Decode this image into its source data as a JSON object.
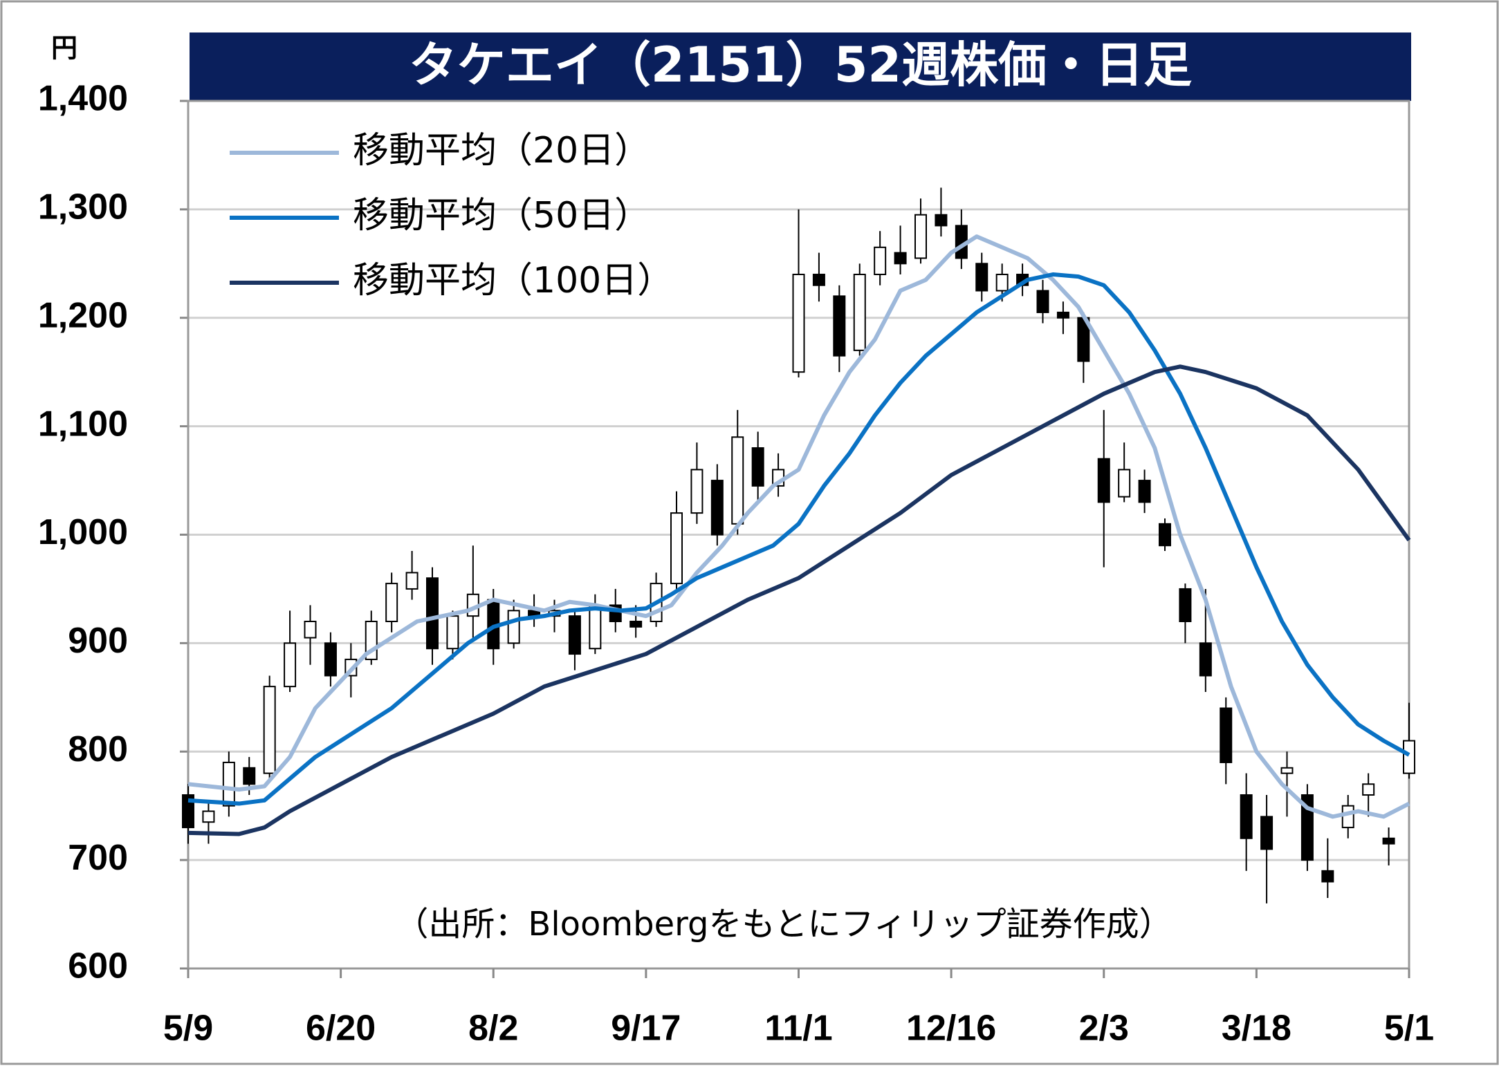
{
  "chart_data": {
    "type": "candlestick",
    "title": "タケエイ（2151）52週株価・日足",
    "y_unit": "円",
    "source": "（出所：Bloombergをもとにフィリップ証券作成）",
    "xlim": [
      0,
      240
    ],
    "xticks": [
      {
        "value": 0,
        "label": "5/9"
      },
      {
        "value": 30,
        "label": "6/20"
      },
      {
        "value": 60,
        "label": "8/2"
      },
      {
        "value": 90,
        "label": "9/17"
      },
      {
        "value": 120,
        "label": "11/1"
      },
      {
        "value": 150,
        "label": "12/16"
      },
      {
        "value": 180,
        "label": "2/3"
      },
      {
        "value": 210,
        "label": "3/18"
      },
      {
        "value": 240,
        "label": "5/1"
      }
    ],
    "ylim": [
      600,
      1400
    ],
    "yticks": [
      600,
      700,
      800,
      900,
      {
        "value": 1000,
        "label": "1,000"
      },
      {
        "value": 1100,
        "label": "1,100"
      },
      {
        "value": 1200,
        "label": "1,200"
      },
      {
        "value": 1300,
        "label": "1,300"
      },
      {
        "value": 1400,
        "label": "1,400"
      }
    ],
    "grid": true,
    "legend": "upper left",
    "up_color": "#ffffff",
    "down_color": "#000000",
    "candles": {
      "x": [
        0,
        4,
        8,
        12,
        16,
        20,
        24,
        28,
        32,
        36,
        40,
        44,
        48,
        52,
        56,
        60,
        64,
        68,
        72,
        76,
        80,
        84,
        88,
        92,
        96,
        100,
        104,
        108,
        112,
        116,
        120,
        124,
        128,
        132,
        136,
        140,
        144,
        148,
        152,
        156,
        160,
        164,
        168,
        172,
        176,
        180,
        184,
        188,
        192,
        196,
        200,
        204,
        208,
        212,
        216,
        220,
        224,
        228,
        232,
        236,
        240
      ],
      "open": [
        760,
        735,
        750,
        785,
        780,
        860,
        905,
        900,
        870,
        885,
        920,
        950,
        960,
        895,
        925,
        940,
        900,
        930,
        925,
        925,
        895,
        935,
        920,
        920,
        955,
        1020,
        1050,
        1010,
        1080,
        1045,
        1150,
        1240,
        1220,
        1170,
        1240,
        1260,
        1255,
        1295,
        1285,
        1250,
        1225,
        1240,
        1225,
        1205,
        1200,
        1070,
        1035,
        1050,
        1010,
        950,
        900,
        840,
        760,
        740,
        780,
        760,
        690,
        730,
        760,
        720,
        780
      ],
      "high": [
        770,
        755,
        800,
        795,
        870,
        930,
        935,
        910,
        900,
        930,
        965,
        985,
        970,
        930,
        990,
        950,
        940,
        945,
        940,
        930,
        945,
        950,
        935,
        965,
        1040,
        1085,
        1065,
        1115,
        1095,
        1075,
        1300,
        1260,
        1230,
        1250,
        1280,
        1285,
        1310,
        1320,
        1300,
        1260,
        1250,
        1250,
        1235,
        1215,
        1205,
        1115,
        1085,
        1060,
        1015,
        955,
        950,
        850,
        780,
        760,
        800,
        770,
        720,
        760,
        780,
        730,
        845
      ],
      "low": [
        715,
        715,
        740,
        760,
        775,
        855,
        880,
        860,
        850,
        880,
        910,
        940,
        880,
        885,
        905,
        880,
        895,
        915,
        910,
        875,
        890,
        910,
        905,
        915,
        950,
        1010,
        990,
        1000,
        1030,
        1035,
        1145,
        1215,
        1150,
        1165,
        1230,
        1240,
        1250,
        1275,
        1245,
        1215,
        1215,
        1220,
        1195,
        1185,
        1140,
        970,
        1030,
        1020,
        985,
        900,
        855,
        770,
        690,
        660,
        740,
        690,
        665,
        720,
        740,
        695,
        775
      ],
      "close": [
        730,
        745,
        790,
        770,
        860,
        900,
        920,
        870,
        885,
        920,
        955,
        965,
        895,
        925,
        945,
        895,
        930,
        925,
        930,
        890,
        935,
        920,
        915,
        955,
        1020,
        1060,
        1000,
        1090,
        1045,
        1060,
        1240,
        1230,
        1165,
        1240,
        1265,
        1250,
        1295,
        1285,
        1255,
        1225,
        1240,
        1230,
        1205,
        1200,
        1160,
        1030,
        1060,
        1030,
        990,
        920,
        870,
        790,
        720,
        710,
        785,
        700,
        680,
        750,
        770,
        715,
        810
      ]
    },
    "series": [
      {
        "name": "移動平均（20日）",
        "color": "#9db8da",
        "x": [
          0,
          10,
          15,
          20,
          25,
          30,
          35,
          40,
          45,
          50,
          55,
          60,
          65,
          70,
          75,
          80,
          85,
          90,
          95,
          100,
          105,
          110,
          115,
          120,
          125,
          130,
          135,
          140,
          145,
          150,
          155,
          160,
          165,
          170,
          175,
          180,
          185,
          190,
          195,
          200,
          205,
          210,
          215,
          220,
          225,
          230,
          235,
          240
        ],
        "values": [
          770,
          765,
          768,
          795,
          840,
          865,
          890,
          905,
          920,
          925,
          930,
          940,
          935,
          930,
          938,
          935,
          930,
          925,
          935,
          965,
          990,
          1020,
          1045,
          1060,
          1110,
          1150,
          1180,
          1225,
          1235,
          1260,
          1275,
          1265,
          1255,
          1235,
          1210,
          1170,
          1130,
          1080,
          1000,
          940,
          860,
          800,
          770,
          748,
          740,
          745,
          740,
          752
        ]
      },
      {
        "name": "移動平均（50日）",
        "color": "#0a72c4",
        "x": [
          0,
          10,
          15,
          20,
          25,
          30,
          35,
          40,
          45,
          50,
          55,
          60,
          65,
          70,
          75,
          80,
          85,
          90,
          95,
          100,
          105,
          110,
          115,
          120,
          125,
          130,
          135,
          140,
          145,
          150,
          155,
          160,
          165,
          170,
          175,
          180,
          185,
          190,
          195,
          200,
          205,
          210,
          215,
          220,
          225,
          230,
          235,
          240
        ],
        "values": [
          755,
          752,
          755,
          775,
          795,
          810,
          825,
          840,
          860,
          880,
          900,
          915,
          922,
          925,
          930,
          932,
          930,
          932,
          945,
          960,
          970,
          980,
          990,
          1010,
          1045,
          1075,
          1110,
          1140,
          1165,
          1185,
          1205,
          1220,
          1235,
          1240,
          1238,
          1230,
          1205,
          1170,
          1130,
          1080,
          1025,
          970,
          920,
          880,
          850,
          825,
          810,
          797
        ]
      },
      {
        "name": "移動平均（100日）",
        "color": "#1b3461",
        "x": [
          0,
          10,
          15,
          20,
          30,
          40,
          50,
          60,
          70,
          80,
          90,
          100,
          110,
          120,
          130,
          140,
          150,
          160,
          170,
          180,
          190,
          195,
          200,
          210,
          220,
          230,
          240
        ],
        "values": [
          725,
          724,
          730,
          745,
          770,
          795,
          815,
          835,
          860,
          875,
          890,
          915,
          940,
          960,
          990,
          1020,
          1055,
          1080,
          1105,
          1130,
          1150,
          1155,
          1150,
          1135,
          1110,
          1060,
          995
        ]
      }
    ]
  }
}
